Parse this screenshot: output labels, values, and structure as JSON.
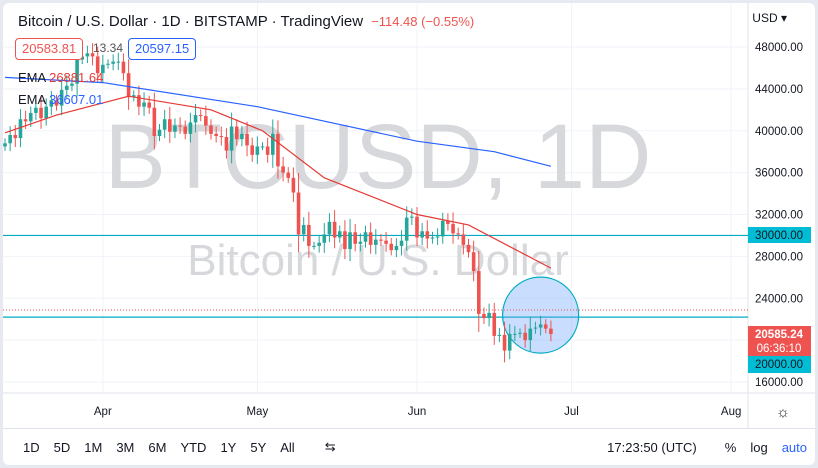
{
  "header": {
    "title": "Bitcoin / U.S. Dollar · 1D · BITSTAMP · TradingView",
    "change": "−114.48 (−0.55%)",
    "bid": "20583.81",
    "spread": "13.34",
    "ask": "20597.15",
    "currency": "USD"
  },
  "indicators": [
    {
      "label": "EMA",
      "value": "26881.64",
      "color": "#e53935"
    },
    {
      "label": "EMA",
      "value": "36607.01",
      "color": "#2962ff"
    }
  ],
  "watermark": {
    "symbol": "BTCUSD, 1D",
    "name": "Bitcoin / U.S. Dollar"
  },
  "price_labels": {
    "last": "20585.24",
    "countdown": "06:36:10",
    "level_30000": "30000.00",
    "level_20000": "20000.00"
  },
  "toolbar": {
    "ranges": [
      "1D",
      "5D",
      "1M",
      "3M",
      "6M",
      "YTD",
      "1Y",
      "5Y",
      "All"
    ],
    "time": "17:23:50 (UTC)",
    "percent": "%",
    "log": "log",
    "auto": "auto"
  },
  "chart_data": {
    "type": "candlestick",
    "start_date": "Mar 13",
    "ylim": [
      14000,
      50000
    ],
    "yticks": [
      48000,
      44000,
      40000,
      36000,
      32000,
      28000,
      24000,
      16000
    ],
    "xticks": [
      {
        "label": "Apr",
        "day": 19
      },
      {
        "label": "May",
        "day": 49
      },
      {
        "label": "Jun",
        "day": 80
      },
      {
        "label": "Jul",
        "day": 110
      },
      {
        "label": "Aug",
        "day": 141
      }
    ],
    "closes": [
      38800,
      39600,
      39300,
      41100,
      40900,
      41700,
      42200,
      41200,
      42300,
      42900,
      42400,
      43900,
      44300,
      44500,
      46800,
      47100,
      47400,
      47100,
      45500,
      46300,
      46400,
      46600,
      46600,
      45500,
      43200,
      43400,
      42300,
      42700,
      42200,
      39500,
      40100,
      41100,
      39900,
      40500,
      40400,
      39700,
      40800,
      41500,
      41400,
      40500,
      39700,
      39500,
      39400,
      38100,
      40400,
      39200,
      39700,
      38600,
      37700,
      38500,
      38500,
      37700,
      39700,
      36600,
      36000,
      35500,
      34100,
      30100,
      31000,
      29000,
      29000,
      29300,
      30100,
      31300,
      29800,
      30400,
      28700,
      30300,
      29200,
      29400,
      30300,
      29100,
      29600,
      29500,
      29200,
      28600,
      29000,
      29500,
      31700,
      31800,
      29800,
      30400,
      29700,
      29800,
      29900,
      31400,
      31100,
      30200,
      30100,
      29100,
      28400,
      26600,
      22500,
      22100,
      22600,
      20400,
      20500,
      19000,
      20600,
      20600,
      20700,
      20000,
      21100,
      21200,
      21500,
      21100,
      20585
    ],
    "ema_fast": [
      [
        0,
        39800
      ],
      [
        10,
        41500
      ],
      [
        24,
        43300
      ],
      [
        40,
        42000
      ],
      [
        50,
        40000
      ],
      [
        62,
        35500
      ],
      [
        80,
        32000
      ],
      [
        90,
        31000
      ],
      [
        106,
        26880
      ]
    ],
    "ema_slow": [
      [
        0,
        45100
      ],
      [
        19,
        44600
      ],
      [
        49,
        42300
      ],
      [
        80,
        39000
      ],
      [
        95,
        38000
      ],
      [
        106,
        36607
      ]
    ],
    "horizontal_lines": [
      30000,
      20000
    ],
    "highlight_circle": {
      "day": 104,
      "price": 20000,
      "radius_price": 4300
    },
    "colors": {
      "up": "#26a69a",
      "down": "#ef5350",
      "ema_fast": "#e53935",
      "ema_slow": "#2962ff",
      "level": "#00acc1"
    }
  }
}
